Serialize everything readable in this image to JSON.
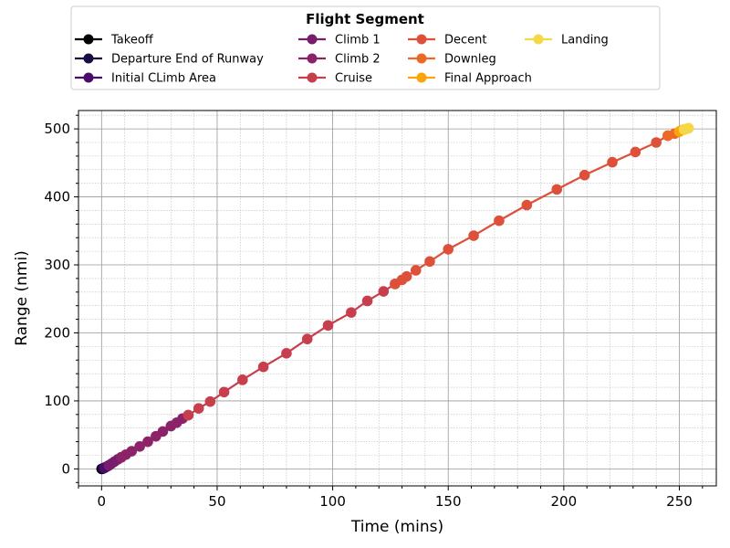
{
  "chart_data": {
    "type": "line",
    "xlabel": "Time (mins)",
    "ylabel": "Range (nmi)",
    "xlim": [
      -10,
      266
    ],
    "ylim": [
      -25,
      527
    ],
    "x_ticks": [
      0,
      50,
      100,
      150,
      200,
      250
    ],
    "y_ticks": [
      0,
      100,
      200,
      300,
      400,
      500
    ],
    "grid": "major and minor",
    "legend": {
      "title": "Flight Segment",
      "location": "top-center",
      "columns": 4
    },
    "series": [
      {
        "name": "Takeoff",
        "color": "#000004",
        "x": [
          0,
          0.2,
          0.4,
          0.6
        ],
        "y": [
          0,
          0.1,
          0.3,
          0.6
        ]
      },
      {
        "name": "Departure End of Runway",
        "color": "#1b0c41",
        "x": [
          0.6,
          0.9,
          1.2
        ],
        "y": [
          0.6,
          1.0,
          1.5
        ]
      },
      {
        "name": "Initial CLimb Area",
        "color": "#4a0c6b",
        "x": [
          1.2,
          1.8,
          2.5,
          3.2
        ],
        "y": [
          1.5,
          2.5,
          3.8,
          5.2
        ]
      },
      {
        "name": "Climb 1",
        "color": "#781c6d",
        "x": [
          3.2,
          4.2,
          5.5,
          7.0,
          8.5
        ],
        "y": [
          5.2,
          7.5,
          10.5,
          14,
          17
        ]
      },
      {
        "name": "Climb 2",
        "color": "#8c2369",
        "x": [
          8.5,
          10.5,
          13,
          16.5,
          20,
          23.5,
          26.5,
          30,
          32.5,
          35,
          37.5
        ],
        "y": [
          17,
          21,
          26,
          33,
          40,
          48,
          55,
          63,
          68,
          74,
          79
        ]
      },
      {
        "name": "Cruise",
        "color": "#c73e4c",
        "x": [
          37.5,
          42,
          47,
          53,
          61,
          70,
          80,
          89,
          98,
          108,
          115,
          122,
          127
        ],
        "y": [
          79,
          89,
          99,
          113,
          131,
          150,
          170,
          191,
          211,
          230,
          247,
          261,
          272
        ]
      },
      {
        "name": "Decent",
        "color": "#dd513a",
        "x": [
          127,
          130,
          132,
          136,
          142,
          150,
          161,
          172,
          184,
          197,
          209,
          221,
          231,
          240,
          245
        ],
        "y": [
          272,
          278,
          283,
          292,
          305,
          323,
          343,
          365,
          388,
          411,
          432,
          451,
          466,
          480,
          490
        ]
      },
      {
        "name": "Downleg",
        "color": "#ed6925",
        "x": [
          245,
          248,
          250
        ],
        "y": [
          490,
          493,
          496
        ]
      },
      {
        "name": "Final Approach",
        "color": "#fca50a",
        "x": [
          250,
          251,
          252
        ],
        "y": [
          496,
          498,
          499
        ]
      },
      {
        "name": "Landing",
        "color": "#f6d746",
        "x": [
          252,
          253,
          254
        ],
        "y": [
          499,
          500,
          501
        ]
      }
    ]
  }
}
